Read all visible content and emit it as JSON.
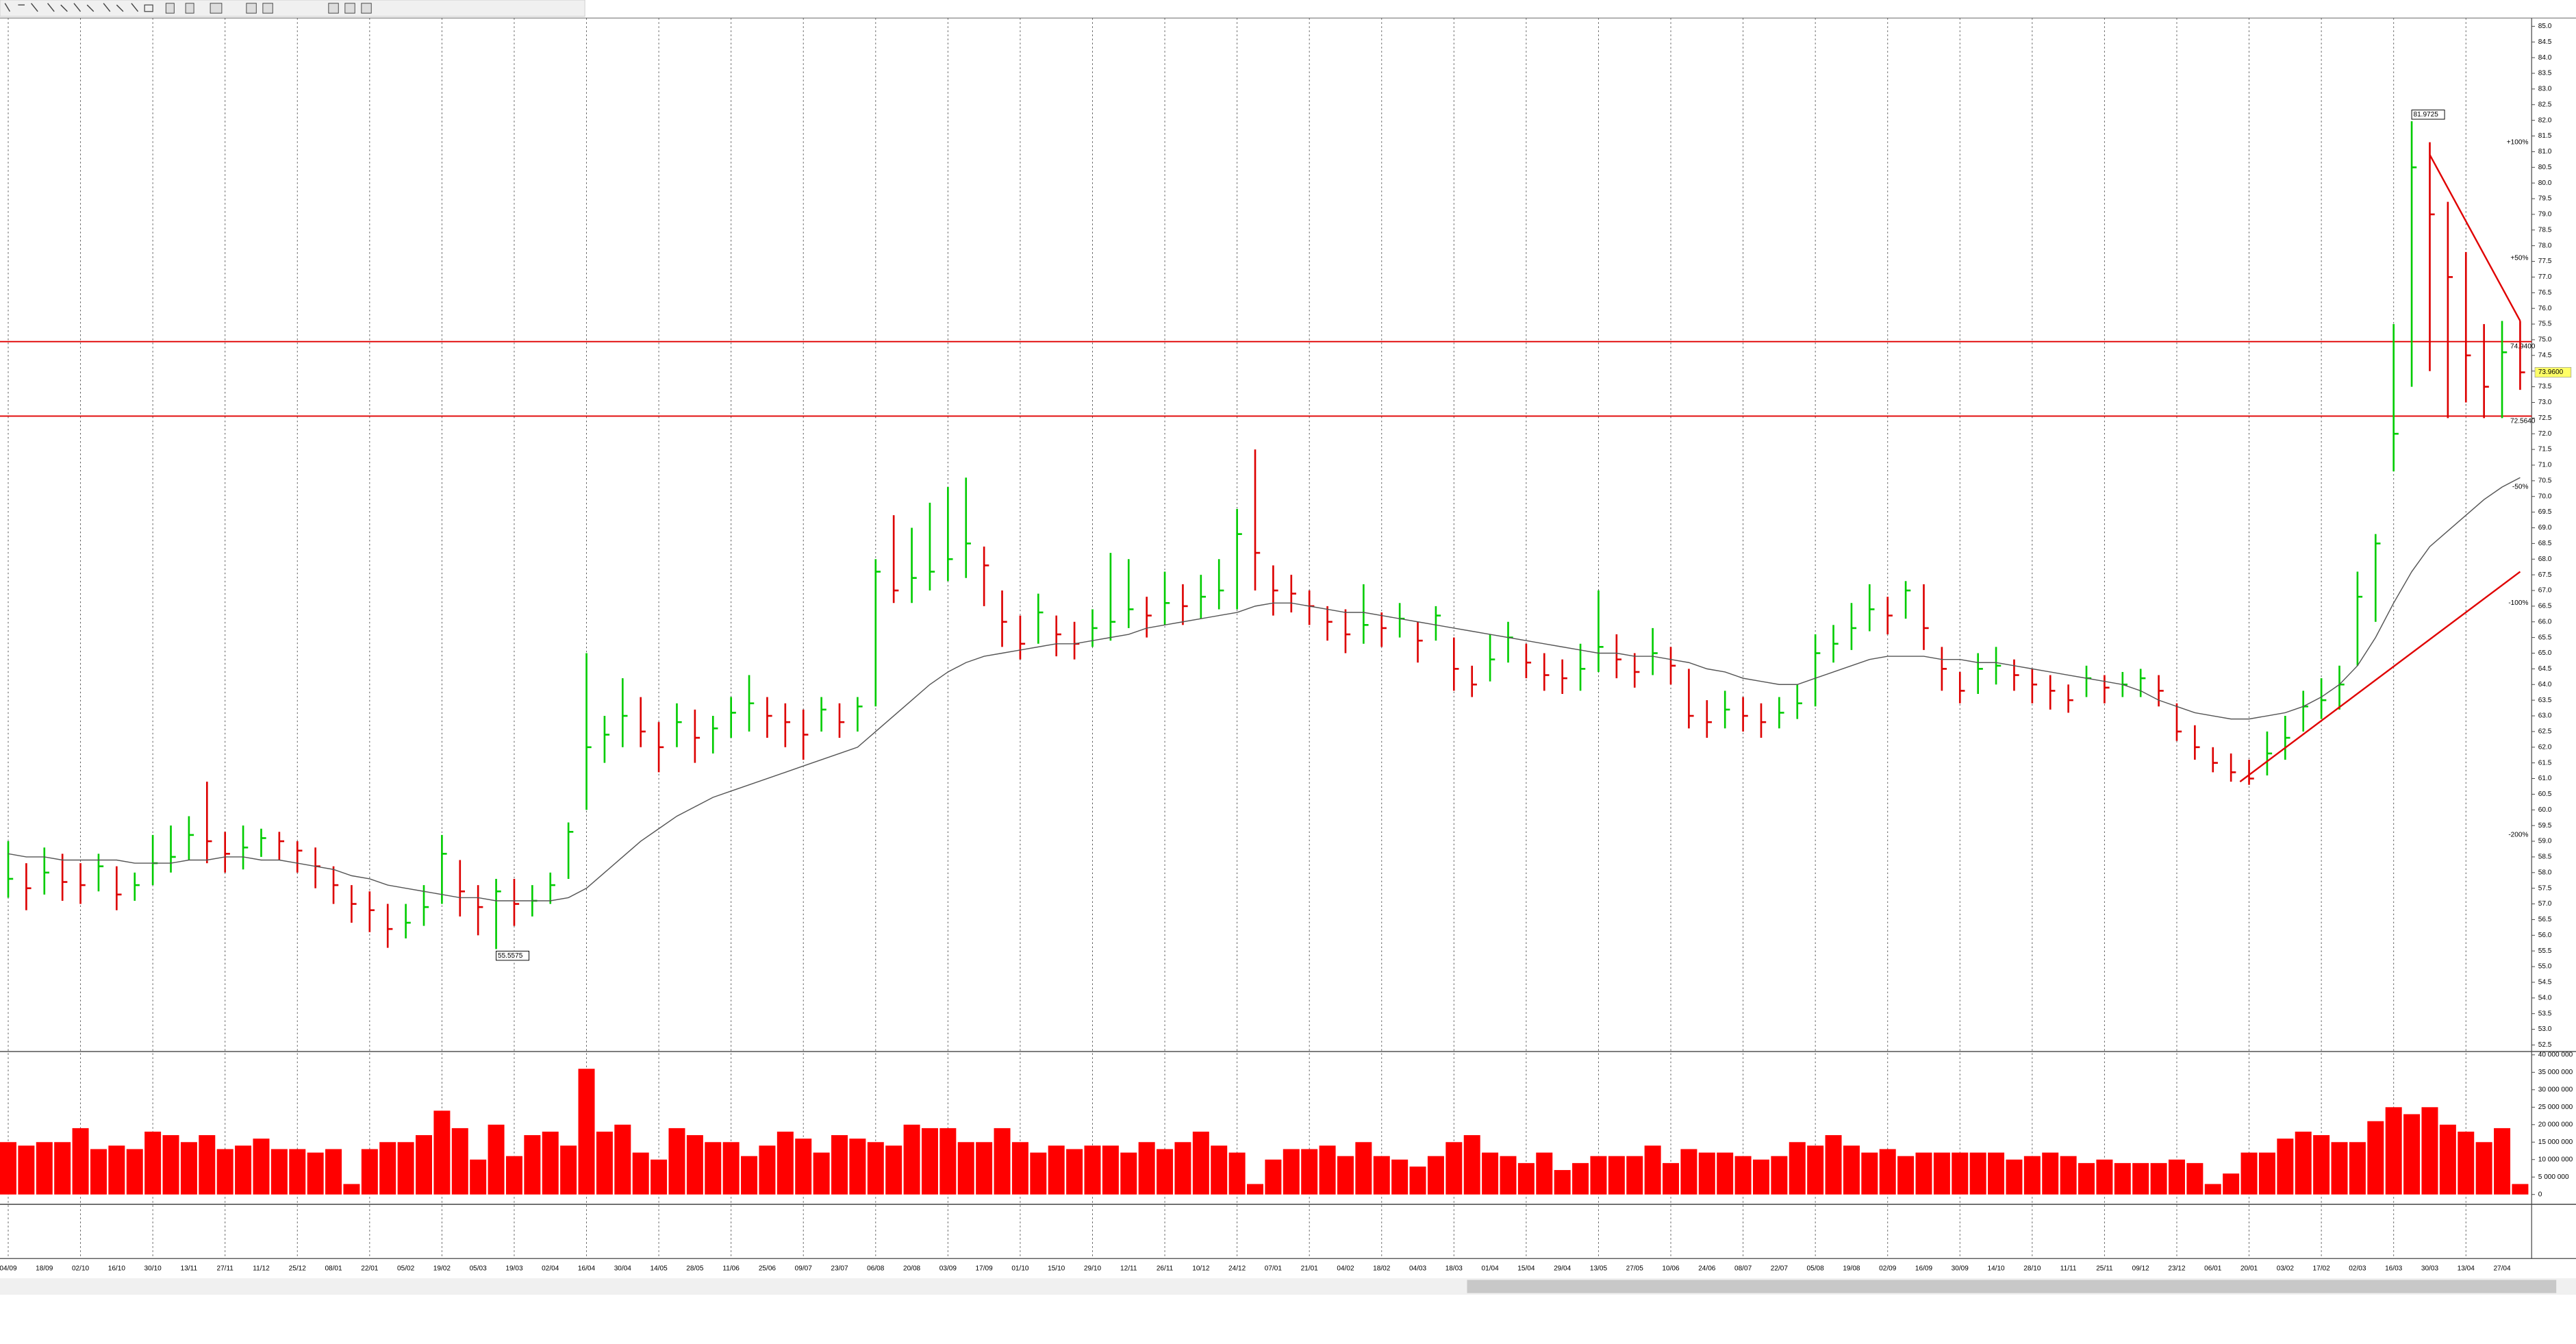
{
  "chart_data": {
    "type": "ohlc",
    "categories": [
      "04/09",
      null,
      "18/09",
      null,
      "02/10",
      null,
      "16/10",
      null,
      "30/10",
      null,
      "13/11",
      null,
      "27/11",
      null,
      "11/12",
      null,
      "25/12",
      null,
      "08/01",
      null,
      "22/01",
      null,
      "05/02",
      null,
      "19/02",
      null,
      "05/03",
      null,
      "19/03",
      null,
      "02/04",
      null,
      "16/04",
      null,
      "30/04",
      null,
      "14/05",
      null,
      "28/05",
      null,
      "11/06",
      null,
      "25/06",
      null,
      "09/07",
      null,
      "23/07",
      null,
      "06/08",
      null,
      "20/08",
      null,
      "03/09",
      null,
      "17/09",
      null,
      "01/10",
      null,
      "15/10",
      null,
      "29/10",
      null,
      "12/11",
      null,
      "26/11",
      null,
      "10/12",
      null,
      "24/12",
      null,
      "07/01",
      null,
      "21/01",
      null,
      "04/02",
      null,
      "18/02",
      null,
      "04/03",
      null,
      "18/03",
      null,
      "01/04",
      null,
      "15/04",
      null,
      "29/04",
      null,
      "13/05",
      null,
      "27/05",
      null,
      "10/06",
      null,
      "24/06",
      null,
      "08/07",
      null,
      "22/07",
      null,
      "05/08",
      null,
      "19/08",
      null,
      "02/09",
      null,
      "16/09",
      null,
      "30/09",
      null,
      "14/10",
      null,
      "28/10",
      null,
      "11/11",
      null,
      "25/11",
      null,
      "09/12",
      null,
      "23/12",
      null,
      "06/01",
      null,
      "20/01",
      null,
      "03/02",
      null,
      "17/02",
      null,
      "02/03",
      null,
      "16/03",
      null,
      "30/03",
      null,
      "13/04",
      null,
      "27/04",
      null
    ],
    "high": [
      59.0,
      58.3,
      58.8,
      58.6,
      58.3,
      58.6,
      58.2,
      58.0,
      59.2,
      59.5,
      59.8,
      60.9,
      59.3,
      59.5,
      59.4,
      59.3,
      59.0,
      58.8,
      58.2,
      57.6,
      57.4,
      57.0,
      57.0,
      57.6,
      59.2,
      58.4,
      57.6,
      57.8,
      57.8,
      57.6,
      58.0,
      59.6,
      65.0,
      63.0,
      64.2,
      63.6,
      62.8,
      63.4,
      63.2,
      63.0,
      63.6,
      64.3,
      63.6,
      63.4,
      63.2,
      63.6,
      63.4,
      63.6,
      68.0,
      69.4,
      69.0,
      69.8,
      70.3,
      70.6,
      68.4,
      67.0,
      66.2,
      66.9,
      66.2,
      66.0,
      66.4,
      68.2,
      68.0,
      66.8,
      67.6,
      67.2,
      67.5,
      68.0,
      69.6,
      71.5,
      67.8,
      67.5,
      67.0,
      66.5,
      66.4,
      67.2,
      66.3,
      66.6,
      66.0,
      66.5,
      65.5,
      64.6,
      65.6,
      66.0,
      65.3,
      65.0,
      64.8,
      65.3,
      67.0,
      65.6,
      65.0,
      65.8,
      65.2,
      64.5,
      63.5,
      63.8,
      63.6,
      63.4,
      63.6,
      64.0,
      65.6,
      65.9,
      66.6,
      67.2,
      66.8,
      67.3,
      67.2,
      65.2,
      64.4,
      65.0,
      65.2,
      64.8,
      64.5,
      64.3,
      64.0,
      64.6,
      64.3,
      64.4,
      64.5,
      64.3,
      63.4,
      62.7,
      62.0,
      61.8,
      61.6,
      62.5,
      63.0,
      63.8,
      64.2,
      64.6,
      67.6,
      68.8,
      75.5,
      81.97,
      81.3,
      79.4,
      77.8,
      75.5,
      75.6,
      75.6
    ],
    "low": [
      57.2,
      56.8,
      57.3,
      57.1,
      57.0,
      57.4,
      56.8,
      57.1,
      57.6,
      58.0,
      58.4,
      58.3,
      58.0,
      58.1,
      58.5,
      58.4,
      58.0,
      57.5,
      57.0,
      56.4,
      56.1,
      55.6,
      55.9,
      56.3,
      57.0,
      56.6,
      56.0,
      55.56,
      56.3,
      56.6,
      57.0,
      57.8,
      60.0,
      61.5,
      62.0,
      62.0,
      61.2,
      62.0,
      61.5,
      61.8,
      62.3,
      62.5,
      62.3,
      62.0,
      61.6,
      62.5,
      62.3,
      62.5,
      63.3,
      66.6,
      66.6,
      67.0,
      67.3,
      67.4,
      66.5,
      65.2,
      64.8,
      65.3,
      64.9,
      64.8,
      65.2,
      65.4,
      65.8,
      65.5,
      65.9,
      65.9,
      66.1,
      66.4,
      66.4,
      67.0,
      66.2,
      66.3,
      65.9,
      65.4,
      65.0,
      65.3,
      65.2,
      65.5,
      64.7,
      65.4,
      63.8,
      63.6,
      64.1,
      64.7,
      64.2,
      63.8,
      63.7,
      63.8,
      64.4,
      64.2,
      63.9,
      64.3,
      64.0,
      62.6,
      62.3,
      62.6,
      62.5,
      62.3,
      62.6,
      62.9,
      63.3,
      64.7,
      65.1,
      65.7,
      65.6,
      66.1,
      65.1,
      63.8,
      63.4,
      63.7,
      64.0,
      63.8,
      63.4,
      63.2,
      63.1,
      63.6,
      63.4,
      63.6,
      63.6,
      63.3,
      62.2,
      61.6,
      61.2,
      60.9,
      60.8,
      61.1,
      61.6,
      62.5,
      62.9,
      63.2,
      64.6,
      66.0,
      70.8,
      73.5,
      74.0,
      72.5,
      73.0,
      72.5,
      72.5,
      73.4
    ],
    "close": [
      57.8,
      57.5,
      58.0,
      57.7,
      57.6,
      58.2,
      57.3,
      57.6,
      58.3,
      58.5,
      59.2,
      59.0,
      58.6,
      58.8,
      59.1,
      59.0,
      58.7,
      58.2,
      57.6,
      57.0,
      56.8,
      56.2,
      56.4,
      56.9,
      58.6,
      57.4,
      56.9,
      57.4,
      57.0,
      57.1,
      57.6,
      59.3,
      62.0,
      62.4,
      63.0,
      62.5,
      62.0,
      62.8,
      62.3,
      62.6,
      63.1,
      63.4,
      63.0,
      62.8,
      62.4,
      63.2,
      62.8,
      63.3,
      67.6,
      67.0,
      67.4,
      67.6,
      68.0,
      68.5,
      67.8,
      66.0,
      65.3,
      66.3,
      65.6,
      65.3,
      65.8,
      66.0,
      66.4,
      66.2,
      66.6,
      66.5,
      66.8,
      67.0,
      68.8,
      68.2,
      67.0,
      66.9,
      66.5,
      66.0,
      65.6,
      65.9,
      65.8,
      66.1,
      65.4,
      66.2,
      64.5,
      64.0,
      64.8,
      65.5,
      64.7,
      64.3,
      64.2,
      64.5,
      65.2,
      64.8,
      64.4,
      65.0,
      64.6,
      63.0,
      62.8,
      63.2,
      63.0,
      62.8,
      63.1,
      63.4,
      65.0,
      65.3,
      65.8,
      66.4,
      66.2,
      67.0,
      65.8,
      64.5,
      63.8,
      64.5,
      64.6,
      64.3,
      64.0,
      63.8,
      63.5,
      64.2,
      63.9,
      64.0,
      64.2,
      63.8,
      62.5,
      62.0,
      61.5,
      61.2,
      61.0,
      61.8,
      62.3,
      63.3,
      63.5,
      64.0,
      66.8,
      68.5,
      72.0,
      80.5,
      79.0,
      77.0,
      74.5,
      73.5,
      74.6,
      73.96
    ],
    "up_color": "#00cc00",
    "down_color": "#dd0000",
    "ma": {
      "color": "#555555",
      "values": [
        58.6,
        58.5,
        58.5,
        58.4,
        58.4,
        58.4,
        58.4,
        58.3,
        58.3,
        58.3,
        58.4,
        58.4,
        58.5,
        58.5,
        58.4,
        58.4,
        58.3,
        58.2,
        58.1,
        57.9,
        57.8,
        57.6,
        57.5,
        57.4,
        57.3,
        57.2,
        57.2,
        57.1,
        57.1,
        57.1,
        57.1,
        57.2,
        57.5,
        58.0,
        58.5,
        59.0,
        59.4,
        59.8,
        60.1,
        60.4,
        60.6,
        60.8,
        61.0,
        61.2,
        61.4,
        61.6,
        61.8,
        62.0,
        62.5,
        63.0,
        63.5,
        64.0,
        64.4,
        64.7,
        64.9,
        65.0,
        65.1,
        65.2,
        65.3,
        65.3,
        65.4,
        65.5,
        65.6,
        65.8,
        65.9,
        66.0,
        66.1,
        66.2,
        66.3,
        66.5,
        66.6,
        66.6,
        66.5,
        66.4,
        66.3,
        66.3,
        66.2,
        66.1,
        66.0,
        65.9,
        65.8,
        65.7,
        65.6,
        65.5,
        65.4,
        65.3,
        65.2,
        65.1,
        65.0,
        65.0,
        64.9,
        64.9,
        64.8,
        64.7,
        64.5,
        64.4,
        64.2,
        64.1,
        64.0,
        64.0,
        64.2,
        64.4,
        64.6,
        64.8,
        64.9,
        64.9,
        64.9,
        64.8,
        64.8,
        64.7,
        64.7,
        64.6,
        64.5,
        64.4,
        64.3,
        64.2,
        64.1,
        64.0,
        63.8,
        63.5,
        63.3,
        63.1,
        63.0,
        62.9,
        62.9,
        63.0,
        63.1,
        63.3,
        63.6,
        64.0,
        64.6,
        65.5,
        66.6,
        67.6,
        68.4,
        68.9,
        69.4,
        69.9,
        70.3,
        70.6
      ]
    },
    "ylim": [
      52.5,
      85.0
    ],
    "yticks": [
      52.5,
      {
        "value": 53,
        "label": "53.0"
      },
      53.5,
      {
        "value": 54,
        "label": "54.0"
      },
      54.5,
      {
        "value": 55,
        "label": "55.0"
      },
      55.5,
      {
        "value": 56,
        "label": "56.0"
      },
      56.5,
      {
        "value": 57,
        "label": "57.0"
      },
      57.5,
      {
        "value": 58,
        "label": "58.0"
      },
      58.5,
      {
        "value": 59,
        "label": "59.0"
      },
      59.5,
      {
        "value": 60,
        "label": "60.0"
      },
      60.5,
      {
        "value": 61,
        "label": "61.0"
      },
      61.5,
      {
        "value": 62,
        "label": "62.0"
      },
      62.5,
      {
        "value": 63,
        "label": "63.0"
      },
      63.5,
      {
        "value": 64,
        "label": "64.0"
      },
      64.5,
      {
        "value": 65,
        "label": "65.0"
      },
      65.5,
      {
        "value": 66,
        "label": "66.0"
      },
      66.5,
      {
        "value": 67,
        "label": "67.0"
      },
      67.5,
      {
        "value": 68,
        "label": "68.0"
      },
      68.5,
      {
        "value": 69,
        "label": "69.0"
      },
      69.5,
      {
        "value": 70,
        "label": "70.0"
      },
      70.5,
      {
        "value": 71,
        "label": "71.0"
      },
      71.5,
      {
        "value": 72,
        "label": "72.0"
      },
      72.5,
      {
        "value": 73,
        "label": "73.0"
      },
      73.5,
      {
        "value": 74,
        "label": "74.0"
      },
      74.5,
      {
        "value": 75,
        "label": "75.0"
      },
      75.5,
      {
        "value": 76,
        "label": "76.0"
      },
      76.5,
      {
        "value": 77,
        "label": "77.0"
      },
      77.5,
      {
        "value": 78,
        "label": "78.0"
      },
      78.5,
      {
        "value": 79,
        "label": "79.0"
      },
      79.5,
      {
        "value": 80,
        "label": "80.0"
      },
      80.5,
      {
        "value": 81,
        "label": "81.0"
      },
      81.5,
      {
        "value": 82,
        "label": "82.0"
      },
      82.5,
      {
        "value": 83,
        "label": "83.0"
      },
      83.5,
      {
        "value": 84,
        "label": "84.0"
      },
      84.5,
      {
        "value": 85,
        "label": "85.0"
      }
    ],
    "hlines": [
      {
        "value": 74.94,
        "label": "74.9400"
      },
      {
        "value": 72.564,
        "label": "72.5640"
      }
    ],
    "last_price": {
      "value": 73.96,
      "label": "73.9600"
    },
    "extremes": [
      {
        "index": 27,
        "value": 55.5575,
        "label": "55.5575"
      },
      {
        "index": 133,
        "value": 81.9725,
        "label": "81.9725"
      }
    ],
    "trendlines": [
      {
        "x": [
          123.5,
          139
        ],
        "y": [
          60.9,
          67.6
        ]
      },
      {
        "x": [
          134,
          139
        ],
        "y": [
          80.9,
          75.6
        ]
      }
    ],
    "levels": [
      {
        "value": 81.3,
        "label": "+100%"
      },
      {
        "value": 77.6,
        "label": "+50%"
      },
      {
        "value": 70.3,
        "label": "-50%"
      },
      {
        "value": 66.6,
        "label": "-100%"
      },
      {
        "value": 59.2,
        "label": "-200%"
      }
    ],
    "volume": {
      "color": "#ff0000",
      "values": [
        15000000,
        14000000,
        15000000,
        15000000,
        19000000,
        13000000,
        14000000,
        13000000,
        18000000,
        17000000,
        15000000,
        17000000,
        13000000,
        14000000,
        16000000,
        13000000,
        13000000,
        12000000,
        13000000,
        3000000,
        13000000,
        15000000,
        15000000,
        17000000,
        24000000,
        19000000,
        10000000,
        20000000,
        11000000,
        17000000,
        18000000,
        14000000,
        36000000,
        18000000,
        20000000,
        12000000,
        10000000,
        19000000,
        17000000,
        15000000,
        15000000,
        11000000,
        14000000,
        18000000,
        16000000,
        12000000,
        17000000,
        16000000,
        15000000,
        14000000,
        20000000,
        19000000,
        19000000,
        15000000,
        15000000,
        19000000,
        15000000,
        12000000,
        14000000,
        13000000,
        14000000,
        14000000,
        12000000,
        15000000,
        13000000,
        15000000,
        18000000,
        14000000,
        12000000,
        3000000,
        10000000,
        13000000,
        13000000,
        14000000,
        11000000,
        15000000,
        11000000,
        10000000,
        8000000,
        11000000,
        15000000,
        17000000,
        12000000,
        11000000,
        9000000,
        12000000,
        7000000,
        9000000,
        11000000,
        11000000,
        11000000,
        14000000,
        9000000,
        13000000,
        12000000,
        12000000,
        11000000,
        10000000,
        11000000,
        15000000,
        14000000,
        17000000,
        14000000,
        12000000,
        13000000,
        11000000,
        12000000,
        12000000,
        12000000,
        12000000,
        12000000,
        10000000,
        11000000,
        12000000,
        11000000,
        9000000,
        10000000,
        9000000,
        9000000,
        9000000,
        10000000,
        9000000,
        3000000,
        6000000,
        12000000,
        12000000,
        16000000,
        18000000,
        17000000,
        15000000,
        15000000,
        21000000,
        25000000,
        23000000,
        25000000,
        20000000,
        18000000,
        15000000,
        19000000,
        3000000
      ],
      "ylim": [
        0,
        40000000
      ],
      "yticks": [
        0,
        {
          "value": 5000000,
          "label": "5 000 000"
        },
        {
          "value": 10000000,
          "label": "10 000 000"
        },
        {
          "value": 15000000,
          "label": "15 000 000"
        },
        {
          "value": 20000000,
          "label": "20 000 000"
        },
        {
          "value": 25000000,
          "label": "25 000 000"
        },
        {
          "value": 30000000,
          "label": "30 000 000"
        },
        {
          "value": 35000000,
          "label": "35 000 000"
        },
        {
          "value": 40000000,
          "label": "40 000 000"
        }
      ]
    }
  }
}
